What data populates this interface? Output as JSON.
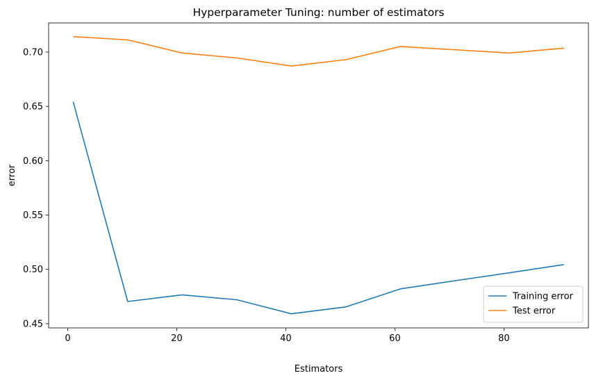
{
  "chart_data": {
    "type": "line",
    "title": "Hyperparameter Tuning: number of estimators",
    "xlabel": "Estimators",
    "ylabel": "error",
    "x": [
      1,
      11,
      21,
      31,
      41,
      51,
      61,
      71,
      81,
      91
    ],
    "series": [
      {
        "name": "Training error",
        "color": "#1f77b4",
        "values": [
          0.6542,
          0.4704,
          0.4765,
          0.472,
          0.4591,
          0.4654,
          0.482,
          0.4895,
          0.4968,
          0.5044
        ]
      },
      {
        "name": "Test error",
        "color": "#ff7f0e",
        "values": [
          0.7142,
          0.7112,
          0.6991,
          0.6946,
          0.6871,
          0.693,
          0.7051,
          0.7021,
          0.6991,
          0.7036
        ]
      }
    ],
    "xlim": [
      -3.5,
      95.5
    ],
    "ylim": [
      0.4461,
      0.7268
    ],
    "xticks": [
      0,
      20,
      40,
      60,
      80
    ],
    "yticks": [
      0.45,
      0.5,
      0.55,
      0.6,
      0.65,
      0.7
    ],
    "ytick_labels": [
      "0.45",
      "0.50",
      "0.55",
      "0.60",
      "0.65",
      "0.70"
    ],
    "grid": false,
    "legend_position": "lower-right"
  }
}
